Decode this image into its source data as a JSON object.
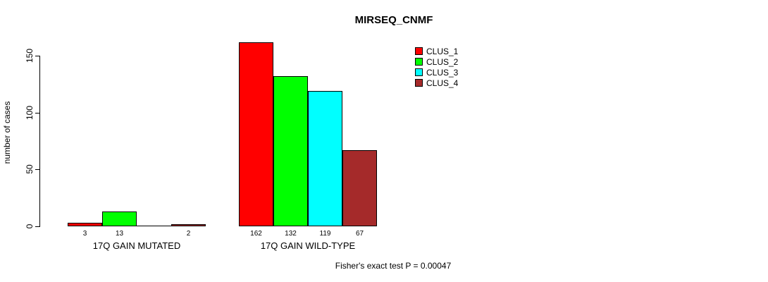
{
  "chart_data": {
    "type": "bar",
    "title": "MIRSEQ_CNMF",
    "ylabel": "number of cases",
    "xlabel": "",
    "yticks": [
      0,
      50,
      100,
      150
    ],
    "ylim": [
      0,
      162
    ],
    "grid": false,
    "legend_position": "top-right-outside",
    "categories": [
      "17Q GAIN MUTATED",
      "17Q GAIN WILD-TYPE"
    ],
    "series": [
      {
        "name": "CLUS_1",
        "color": "#FF0000",
        "values": [
          3,
          162
        ]
      },
      {
        "name": "CLUS_2",
        "color": "#00FF00",
        "values": [
          13,
          132
        ]
      },
      {
        "name": "CLUS_3",
        "color": "#00FFFF",
        "values": [
          0,
          119
        ]
      },
      {
        "name": "CLUS_4",
        "color": "#A52A2A",
        "values": [
          2,
          67
        ]
      }
    ],
    "bar_labels": [
      [
        "3",
        "13",
        "",
        "2"
      ],
      [
        "162",
        "132",
        "119",
        "67"
      ]
    ],
    "footer": "Fisher's exact test P = 0.00047"
  }
}
